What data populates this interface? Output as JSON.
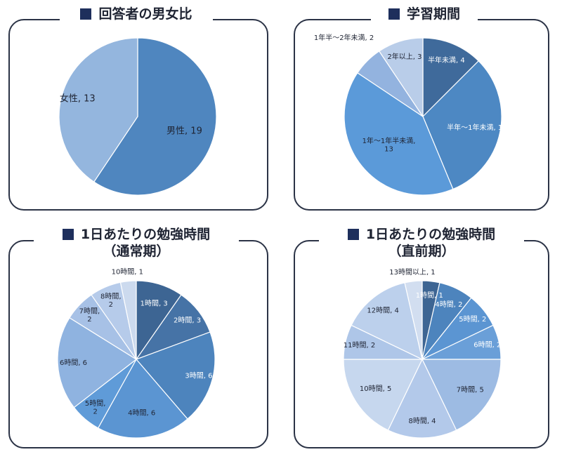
{
  "chart_data": [
    {
      "type": "pie",
      "title": "回答者の男女比",
      "title_line2": "",
      "slices": [
        {
          "label": "男性",
          "value": 19,
          "color": "#4f86bf",
          "text": "男性, 19",
          "text_color": "#1f2433"
        },
        {
          "label": "女性",
          "value": 13,
          "color": "#94b6de",
          "text": "女性, 13",
          "text_color": "#1f2433"
        }
      ]
    },
    {
      "type": "pie",
      "title": "学習期間",
      "title_line2": "",
      "slices": [
        {
          "label": "半年未満",
          "value": 4,
          "color": "#3f6a9b",
          "text": "半年未満, 4",
          "text_color": "#ffffff"
        },
        {
          "label": "半年～1年未満",
          "value": 10,
          "color": "#4d88c3",
          "text": "半年～1年未満, 10",
          "text_color": "#ffffff"
        },
        {
          "label": "1年～1年半未満",
          "value": 13,
          "color": "#5b9ad9",
          "text": "1年～1年半未満,|13",
          "text_color": "#1f2433"
        },
        {
          "label": "1年半～2年未満",
          "value": 2,
          "color": "#93b3df",
          "text": "1年半～2年未満, 2",
          "text_color": "#1f2433"
        },
        {
          "label": "2年以上",
          "value": 3,
          "color": "#b9cde9",
          "text": "2年以上, 3",
          "text_color": "#1f2433"
        }
      ]
    },
    {
      "type": "pie",
      "title": "1日あたりの勉強時間",
      "title_line2": "（通常期）",
      "slices": [
        {
          "label": "1時間",
          "value": 3,
          "color": "#3d6593",
          "text": "1時間, 3",
          "text_color": "#ffffff"
        },
        {
          "label": "2時間",
          "value": 3,
          "color": "#4673a6",
          "text": "2時間, 3",
          "text_color": "#ffffff"
        },
        {
          "label": "3時間",
          "value": 6,
          "color": "#4d84bd",
          "text": "3時間, 6",
          "text_color": "#ffffff"
        },
        {
          "label": "4時間",
          "value": 6,
          "color": "#5b95d2",
          "text": "4時間, 6",
          "text_color": "#1f2433"
        },
        {
          "label": "5時間",
          "value": 2,
          "color": "#5f9bd8",
          "text": "5時間,|2",
          "text_color": "#1f2433"
        },
        {
          "label": "6時間",
          "value": 6,
          "color": "#8fb3e0",
          "text": "6時間, 6",
          "text_color": "#1f2433"
        },
        {
          "label": "7時間",
          "value": 2,
          "color": "#a7c1e6",
          "text": "7時間,|2",
          "text_color": "#1f2433"
        },
        {
          "label": "8時間",
          "value": 2,
          "color": "#b6cbea",
          "text": "8時間,|2",
          "text_color": "#1f2433"
        },
        {
          "label": "10時間",
          "value": 1,
          "color": "#ccdaee",
          "text": "10時間, 1",
          "text_color": "#1f2433"
        }
      ]
    },
    {
      "type": "pie",
      "title": "1日あたりの勉強時間",
      "title_line2": "（直前期）",
      "slices": [
        {
          "label": "1時間",
          "value": 1,
          "color": "#3d6593",
          "text": "1時間, 1",
          "text_color": "#ffffff"
        },
        {
          "label": "4時間",
          "value": 2,
          "color": "#4d84bd",
          "text": "4時間, 2",
          "text_color": "#ffffff"
        },
        {
          "label": "5時間",
          "value": 2,
          "color": "#5b95d2",
          "text": "5時間, 2",
          "text_color": "#ffffff"
        },
        {
          "label": "6時間",
          "value": 2,
          "color": "#6a9fd8",
          "text": "6時間, 2",
          "text_color": "#ffffff"
        },
        {
          "label": "7時間",
          "value": 5,
          "color": "#9dbbe3",
          "text": "7時間, 5",
          "text_color": "#1f2433"
        },
        {
          "label": "8時間",
          "value": 4,
          "color": "#b3c9ea",
          "text": "8時間, 4",
          "text_color": "#1f2433"
        },
        {
          "label": "10時間",
          "value": 5,
          "color": "#c6d7ee",
          "text": "10時間, 5",
          "text_color": "#1f2433"
        },
        {
          "label": "11時間",
          "value": 2,
          "color": "#aec6e8",
          "text": "11時間, 2",
          "text_color": "#1f2433"
        },
        {
          "label": "12時間",
          "value": 4,
          "color": "#bcd0ec",
          "text": "12時間, 4",
          "text_color": "#1f2433"
        },
        {
          "label": "13時間以上",
          "value": 1,
          "color": "#d2def0",
          "text": "13時間以上, 1",
          "text_color": "#1f2433"
        }
      ]
    }
  ]
}
